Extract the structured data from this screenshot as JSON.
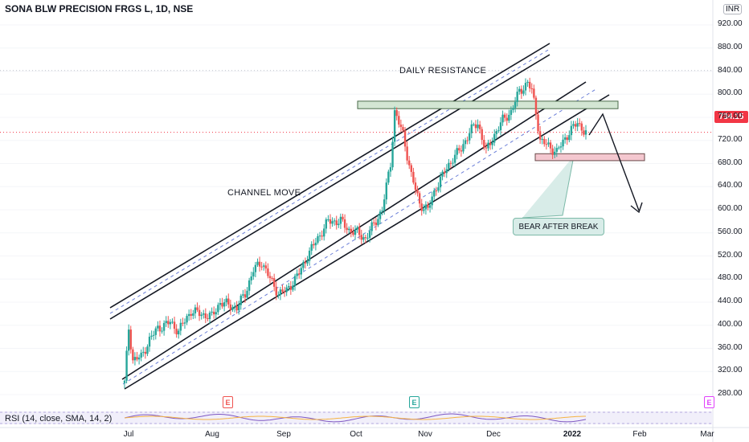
{
  "chart_title": "SONA BLW PRECISION FRGS L, 1D, NSE",
  "currency": "INR",
  "last_price": "734.15",
  "rsi_label": "RSI (14, close, SMA, 14, 2)",
  "annotations": {
    "daily_resistance": "DAILY RESISTANCE",
    "channel_move": "CHANNEL MOVE",
    "bear_after_break": "BEAR AFTER BREAK"
  },
  "earnings_badge": "E",
  "colors": {
    "up": "#26a69a",
    "down": "#ef5350",
    "resistance_zone": "#9fc3a4",
    "support_zone": "#f4c7cf",
    "last_price": "#f23645"
  },
  "chart_data": {
    "type": "candlestick",
    "title": "SONA BLW PRECISION FRGS L, 1D, NSE",
    "y_ticks": [
      "280.00",
      "320.00",
      "360.00",
      "400.00",
      "440.00",
      "480.00",
      "520.00",
      "560.00",
      "600.00",
      "640.00",
      "680.00",
      "720.00",
      "760.00",
      "800.00",
      "840.00",
      "880.00",
      "920.00"
    ],
    "x_ticks": [
      "Jul",
      "Aug",
      "Sep",
      "Oct",
      "Nov",
      "Dec",
      "2022",
      "Feb",
      "Mar"
    ],
    "ylim": [
      280,
      920
    ],
    "last_price": 734.15,
    "resistance_zone": [
      775,
      788
    ],
    "support_zone": [
      685,
      697
    ],
    "price_path": [
      [
        0,
        300
      ],
      [
        2,
        395
      ],
      [
        4,
        340
      ],
      [
        8,
        345
      ],
      [
        12,
        375
      ],
      [
        16,
        395
      ],
      [
        22,
        405
      ],
      [
        26,
        390
      ],
      [
        32,
        425
      ],
      [
        36,
        420
      ],
      [
        42,
        415
      ],
      [
        46,
        440
      ],
      [
        50,
        435
      ],
      [
        54,
        430
      ],
      [
        58,
        455
      ],
      [
        62,
        495
      ],
      [
        66,
        510
      ],
      [
        70,
        480
      ],
      [
        74,
        455
      ],
      [
        78,
        460
      ],
      [
        84,
        490
      ],
      [
        88,
        520
      ],
      [
        92,
        545
      ],
      [
        98,
        580
      ],
      [
        104,
        580
      ],
      [
        108,
        565
      ],
      [
        112,
        560
      ],
      [
        116,
        550
      ],
      [
        120,
        575
      ],
      [
        124,
        600
      ],
      [
        128,
        680
      ],
      [
        130,
        770
      ],
      [
        134,
        730
      ],
      [
        138,
        660
      ],
      [
        142,
        610
      ],
      [
        146,
        600
      ],
      [
        150,
        640
      ],
      [
        154,
        665
      ],
      [
        158,
        690
      ],
      [
        162,
        705
      ],
      [
        166,
        735
      ],
      [
        170,
        750
      ],
      [
        174,
        700
      ],
      [
        178,
        730
      ],
      [
        182,
        755
      ],
      [
        186,
        770
      ],
      [
        190,
        805
      ],
      [
        194,
        820
      ],
      [
        196,
        805
      ],
      [
        198,
        770
      ],
      [
        200,
        720
      ],
      [
        204,
        710
      ],
      [
        208,
        700
      ],
      [
        214,
        735
      ],
      [
        218,
        750
      ],
      [
        222,
        734
      ]
    ]
  }
}
